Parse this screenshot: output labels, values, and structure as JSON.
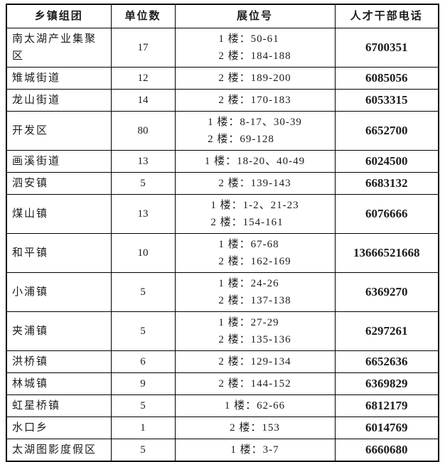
{
  "table": {
    "headers": [
      "乡镇组团",
      "单位数",
      "展位号",
      "人才干部电话"
    ],
    "rows": [
      {
        "town": "南太湖产业集聚区",
        "units": "17",
        "booths": [
          "1 楼：50-61",
          "2 楼：184-188"
        ],
        "phone": "6700351"
      },
      {
        "town": "雉城街道",
        "units": "12",
        "booths": [
          "2 楼：189-200"
        ],
        "phone": "6085056"
      },
      {
        "town": "龙山街道",
        "units": "14",
        "booths": [
          "2 楼：170-183"
        ],
        "phone": "6053315"
      },
      {
        "town": "开发区",
        "units": "80",
        "booths": [
          "1 楼：8-17、30-39",
          "2 楼：69-128"
        ],
        "phone": "6652700"
      },
      {
        "town": "画溪街道",
        "units": "13",
        "booths": [
          "1 楼：18-20、40-49"
        ],
        "phone": "6024500"
      },
      {
        "town": "泗安镇",
        "units": "5",
        "booths": [
          "2 楼：139-143"
        ],
        "phone": "6683132"
      },
      {
        "town": "煤山镇",
        "units": "13",
        "booths": [
          "1 楼：1-2、21-23",
          "2 楼：154-161"
        ],
        "phone": "6076666"
      },
      {
        "town": "和平镇",
        "units": "10",
        "booths": [
          "1 楼：67-68",
          "2 楼：162-169"
        ],
        "phone": "13666521668"
      },
      {
        "town": "小浦镇",
        "units": "5",
        "booths": [
          "1 楼：24-26",
          "2 楼：137-138"
        ],
        "phone": "6369270"
      },
      {
        "town": "夹浦镇",
        "units": "5",
        "booths": [
          "1 楼：27-29",
          "2 楼：135-136"
        ],
        "phone": "6297261"
      },
      {
        "town": "洪桥镇",
        "units": "6",
        "booths": [
          "2 楼：129-134"
        ],
        "phone": "6652636"
      },
      {
        "town": "林城镇",
        "units": "9",
        "booths": [
          "2 楼：144-152"
        ],
        "phone": "6369829"
      },
      {
        "town": "虹星桥镇",
        "units": "5",
        "booths": [
          "1 楼：62-66"
        ],
        "phone": "6812179"
      },
      {
        "town": "水口乡",
        "units": "1",
        "booths": [
          "2 楼：153"
        ],
        "phone": "6014769"
      },
      {
        "town": "太湖图影度假区",
        "units": "5",
        "booths": [
          "1 楼：3-7"
        ],
        "phone": "6660680"
      }
    ]
  }
}
